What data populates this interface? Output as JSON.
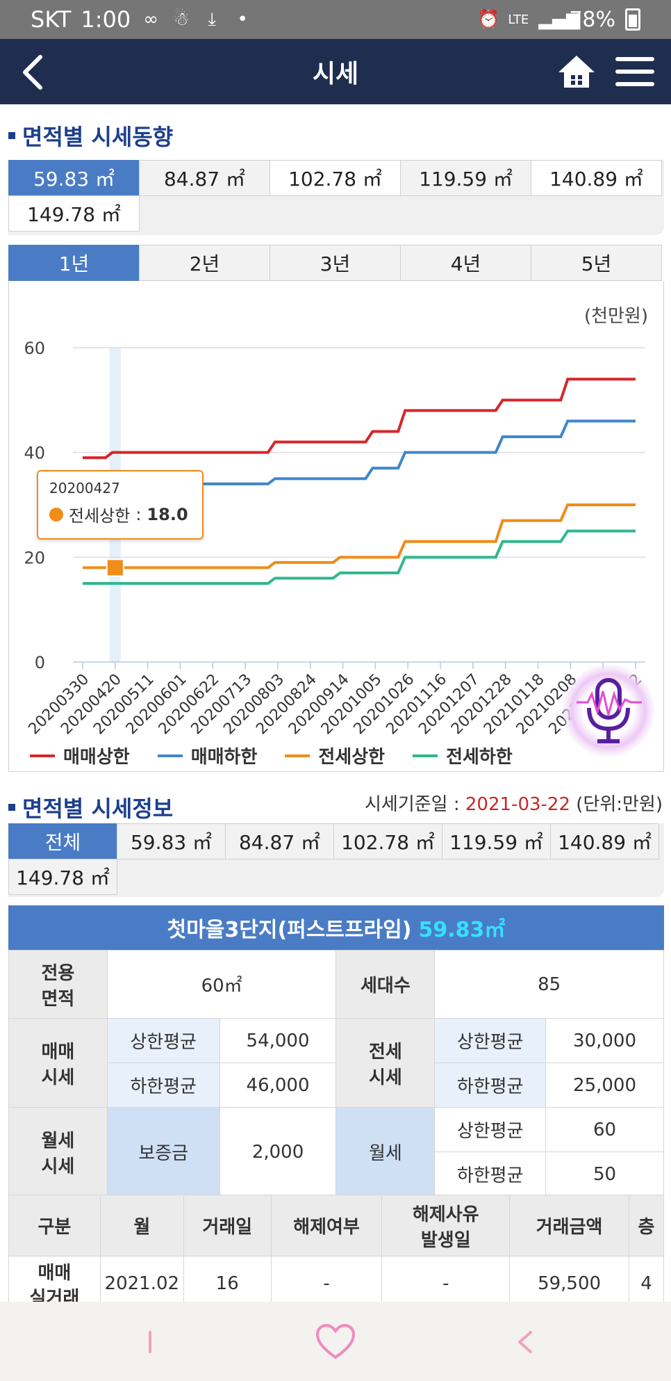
{
  "status_bar": {
    "carrier": "SKT",
    "time": "1:00",
    "network": "LTE",
    "battery": "78%"
  },
  "header": {
    "title": "시세"
  },
  "trend_section": {
    "title": "면적별 시세동향",
    "area_tabs": [
      "59.83 ㎡",
      "84.87 ㎡",
      "102.78 ㎡",
      "119.59 ㎡",
      "140.89 ㎡",
      "149.78 ㎡"
    ],
    "period_tabs": [
      "1년",
      "2년",
      "3년",
      "4년",
      "5년"
    ],
    "unit": "(천만원)",
    "tooltip": {
      "date": "20200427",
      "series": "전세상한",
      "value": "18.0"
    }
  },
  "chart_data": {
    "type": "line",
    "ylim": [
      0,
      60
    ],
    "yticks": [
      "0",
      "20",
      "40",
      "60"
    ],
    "x_labels": [
      "20200330",
      "20200420",
      "20200511",
      "20200601",
      "20200622",
      "20200713",
      "20200803",
      "20200824",
      "20200914",
      "20201005",
      "20201026",
      "20201116",
      "20201207",
      "20201228",
      "20210118",
      "20210208",
      "20210301",
      "20210322"
    ],
    "series": [
      {
        "name": "매매상한",
        "color": "#d6262a",
        "values": [
          39,
          40,
          40,
          40,
          40,
          40,
          42,
          42,
          42,
          44,
          48,
          48,
          48,
          50,
          50,
          54,
          54,
          54
        ]
      },
      {
        "name": "매매하한",
        "color": "#3f86cc",
        "values": [
          33,
          34,
          34,
          34,
          34,
          34,
          35,
          35,
          35,
          37,
          40,
          40,
          40,
          43,
          43,
          46,
          46,
          46
        ]
      },
      {
        "name": "전세상한",
        "color": "#f08c18",
        "values": [
          18,
          18,
          18,
          18,
          18,
          18,
          19,
          19,
          20,
          20,
          23,
          23,
          23,
          27,
          27,
          30,
          30,
          30
        ]
      },
      {
        "name": "전세하한",
        "color": "#2fb88a",
        "values": [
          15,
          15,
          15,
          15,
          15,
          15,
          16,
          16,
          17,
          17,
          20,
          20,
          20,
          23,
          23,
          25,
          25,
          25
        ]
      }
    ],
    "highlight_index": 1
  },
  "info_section": {
    "title": "면적별 시세정보",
    "basis_label": "시세기준일 :",
    "basis_date": "2021-03-22",
    "unit_label": "(단위:만원)",
    "area_tabs": [
      "전체",
      "59.83 ㎡",
      "84.87 ㎡",
      "102.78 ㎡",
      "119.59 ㎡",
      "140.89 ㎡",
      "149.78 ㎡"
    ]
  },
  "complex": {
    "name": "첫마을3단지(퍼스트프라임)",
    "area": "59.83㎡",
    "exclusive_area_label": "전용\n면적",
    "exclusive_area": "60㎡",
    "households_label": "세대수",
    "households": "85",
    "sale_label": "매매\n시세",
    "jeonse_label": "전세\n시세",
    "monthly_label": "월세\n시세",
    "upper_avg": "상한평균",
    "lower_avg": "하한평균",
    "sale_upper": "54,000",
    "sale_lower": "46,000",
    "jeonse_upper": "30,000",
    "jeonse_lower": "25,000",
    "deposit_label": "보증금",
    "deposit": "2,000",
    "monthly_rent_label": "월세",
    "monthly_upper": "60",
    "monthly_lower": "50"
  },
  "transactions": {
    "headers": [
      "구분",
      "월",
      "거래일",
      "해제여부",
      "해제사유\n발생일",
      "거래금액",
      "층"
    ],
    "rows": [
      {
        "type": "매매\n실거래",
        "month": "2021.02",
        "day": "16",
        "cancelled": "-",
        "cancel_date": "-",
        "amount": "59,500",
        "floor": "4"
      }
    ]
  }
}
